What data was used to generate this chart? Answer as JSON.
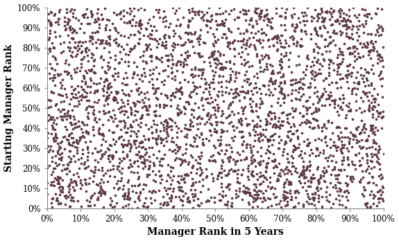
{
  "title": "",
  "xlabel": "Manager Rank in 5 Years",
  "ylabel": "Starting Manager Rank",
  "dot_color": "#5C3848",
  "n_points": 3500,
  "xlim": [
    0,
    1
  ],
  "ylim": [
    0,
    1
  ],
  "xticks": [
    0.0,
    0.1,
    0.2,
    0.3,
    0.4,
    0.5,
    0.6,
    0.7,
    0.8,
    0.9,
    1.0
  ],
  "yticks": [
    0.0,
    0.1,
    0.2,
    0.3,
    0.4,
    0.5,
    0.6,
    0.7,
    0.8,
    0.9,
    1.0
  ],
  "tick_labels": [
    "0%",
    "10%",
    "20%",
    "30%",
    "40%",
    "50%",
    "60%",
    "70%",
    "80%",
    "90%",
    "100%"
  ],
  "marker_size": 7,
  "seed": 42,
  "background_color": "#ffffff",
  "xlabel_fontsize": 10,
  "ylabel_fontsize": 10,
  "tick_fontsize": 8.5,
  "figwidth": 5.75,
  "figheight": 3.48
}
